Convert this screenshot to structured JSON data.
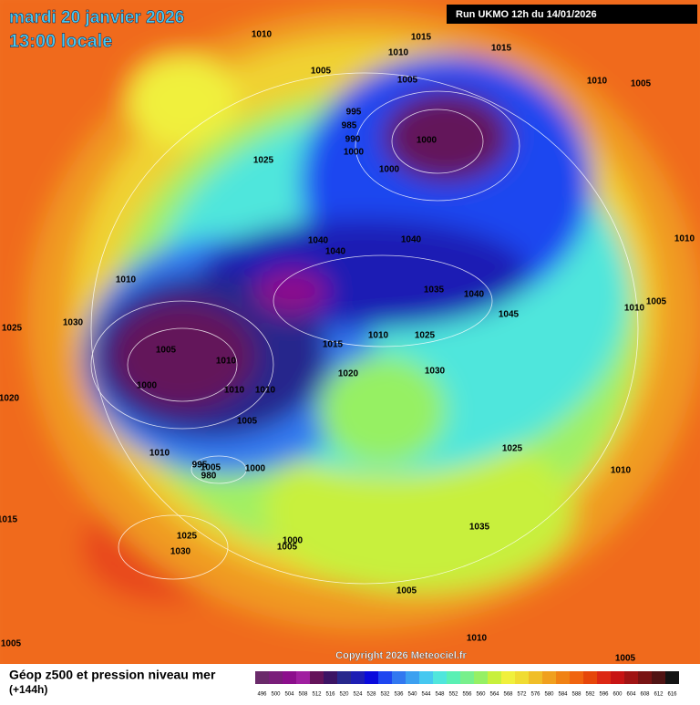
{
  "header": {
    "date": "mardi 20 janvier 2026",
    "time": "13:00 locale",
    "run": "Run UKMO 12h du 14/01/2026"
  },
  "map": {
    "copyright": "Copyright 2026 Meteociel.fr",
    "pressure_labels": [
      "1010",
      "1015",
      "1010",
      "1015",
      "1005",
      "1005",
      "1010",
      "1005",
      "995",
      "985",
      "990",
      "1000",
      "1000",
      "1025",
      "1000",
      "1040",
      "1040",
      "1040",
      "1010",
      "1010",
      "1035",
      "1040",
      "1005",
      "1010",
      "1030",
      "1045",
      "1025",
      "1010",
      "1025",
      "1015",
      "1005",
      "1010",
      "1030",
      "1020",
      "1000",
      "1010",
      "1010",
      "1020",
      "1005",
      "1025",
      "1010",
      "995",
      "1005",
      "980",
      "1000",
      "1010",
      "1015",
      "1035",
      "1025",
      "1000",
      "1005",
      "1030",
      "1005",
      "1010",
      "1005",
      "1005"
    ]
  },
  "legend": {
    "title": "Géop z500 et pression niveau mer",
    "lead": "(+144h)",
    "scale": [
      496,
      500,
      504,
      508,
      512,
      516,
      520,
      524,
      528,
      532,
      536,
      540,
      544,
      548,
      552,
      556,
      560,
      564,
      568,
      572,
      576,
      580,
      584,
      588,
      592,
      596,
      600,
      604,
      608,
      612,
      616
    ],
    "colors": [
      "#6a2a6a",
      "#7a1e7a",
      "#8c0f8c",
      "#a020a0",
      "#64145a",
      "#3c1464",
      "#28288c",
      "#1e1eb4",
      "#0a0adc",
      "#1e46f0",
      "#3278f0",
      "#3ca0f0",
      "#46c8f0",
      "#50e6dc",
      "#5af0b4",
      "#78f08c",
      "#96f064",
      "#c8f03c",
      "#f0f03c",
      "#f0dc32",
      "#f0be28",
      "#f0a01e",
      "#f08214",
      "#f0640f",
      "#e6460a",
      "#dc2814",
      "#c81414",
      "#a01414",
      "#781414",
      "#501414",
      "#141414"
    ]
  }
}
